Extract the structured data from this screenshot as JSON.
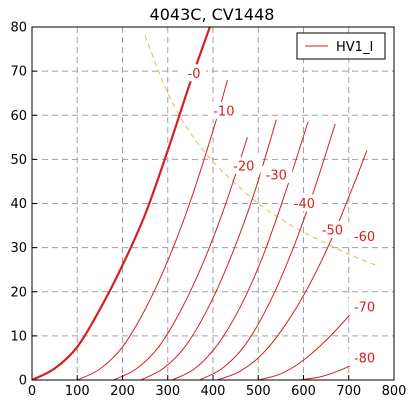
{
  "chart_data": {
    "type": "line",
    "title": "4043C, CV1448",
    "xlabel": "",
    "ylabel": "",
    "xlim": [
      0,
      800
    ],
    "ylim": [
      0,
      80
    ],
    "xticks": [
      0,
      100,
      200,
      300,
      400,
      500,
      600,
      700,
      800
    ],
    "yticks": [
      0,
      10,
      20,
      30,
      40,
      50,
      60,
      70,
      80
    ],
    "grid": true,
    "legend": {
      "placement": "top-right",
      "entries": [
        "HV1_I"
      ]
    },
    "colors": {
      "curves": "#d62020",
      "load_line": "#f0b450",
      "grid": "#a0a0a0"
    },
    "curve_labels": [
      {
        "text": "-0",
        "x": 358,
        "y": 69.5
      },
      {
        "text": "-10",
        "x": 424,
        "y": 61.0
      },
      {
        "text": "-20",
        "x": 468,
        "y": 48.5
      },
      {
        "text": "-30",
        "x": 540,
        "y": 46.5
      },
      {
        "text": "-40",
        "x": 602,
        "y": 40.0
      },
      {
        "text": "-50",
        "x": 664,
        "y": 34.0
      },
      {
        "text": "-60",
        "x": 735,
        "y": 32.5
      },
      {
        "text": "-70",
        "x": 735,
        "y": 16.5
      },
      {
        "text": "-80",
        "x": 735,
        "y": 5.0
      }
    ],
    "load_line": {
      "x": [
        250,
        300,
        350,
        400,
        450,
        500,
        550,
        600,
        650,
        700,
        760
      ],
      "y": [
        78,
        65,
        56,
        49.5,
        44.5,
        40,
        36.5,
        33.5,
        31,
        28.5,
        26
      ]
    },
    "series": [
      {
        "name": "HV1_I",
        "grid_voltage": "-0",
        "x": [
          0,
          50,
          100,
          150,
          200,
          250,
          300,
          350,
          393
        ],
        "y": [
          0,
          2.6,
          7.5,
          16,
          26,
          37.5,
          52,
          67.5,
          80
        ]
      },
      {
        "grid_voltage": "-10",
        "x": [
          100,
          150,
          200,
          250,
          300,
          350,
          400,
          432
        ],
        "y": [
          0,
          2.5,
          7.5,
          16,
          27,
          40.5,
          56.5,
          68
        ]
      },
      {
        "grid_voltage": "-20",
        "x": [
          180,
          230,
          280,
          330,
          380,
          430,
          476
        ],
        "y": [
          0,
          2.5,
          7.5,
          16,
          27,
          40.5,
          55
        ]
      },
      {
        "grid_voltage": "-30",
        "x": [
          240,
          290,
          340,
          390,
          440,
          490,
          540
        ],
        "y": [
          0,
          2.6,
          7.8,
          16.5,
          28,
          42,
          59
        ]
      },
      {
        "grid_voltage": "-40",
        "x": [
          310,
          360,
          410,
          460,
          510,
          560,
          610
        ],
        "y": [
          0,
          2.6,
          8,
          16.5,
          28,
          42.5,
          58.5
        ]
      },
      {
        "grid_voltage": "-50",
        "x": [
          370,
          420,
          470,
          520,
          570,
          620,
          670
        ],
        "y": [
          0,
          2.6,
          7.8,
          16.5,
          28,
          42,
          58
        ]
      },
      {
        "grid_voltage": "-60",
        "x": [
          410,
          460,
          510,
          560,
          610,
          660,
          710,
          740
        ],
        "y": [
          0,
          2,
          6,
          12.5,
          21,
          31.5,
          44,
          52
        ]
      },
      {
        "grid_voltage": "-70",
        "x": [
          500,
          550,
          600,
          650,
          700,
          720
        ],
        "y": [
          0,
          1.4,
          4.5,
          9,
          14.5,
          17
        ]
      },
      {
        "grid_voltage": "-80",
        "x": [
          590,
          640,
          690,
          720
        ],
        "y": [
          0,
          0.8,
          2.6,
          4.2
        ]
      }
    ]
  }
}
